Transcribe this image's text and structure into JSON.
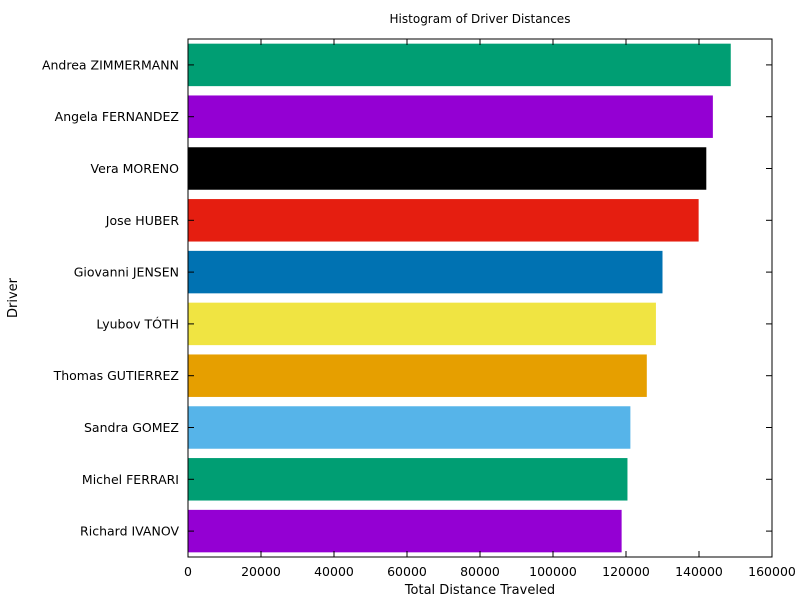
{
  "chart_data": {
    "type": "bar",
    "orientation": "horizontal",
    "title": "Histogram of Driver Distances",
    "xlabel": "Total Distance Traveled",
    "ylabel": "Driver",
    "xlim": [
      0,
      160000
    ],
    "xticks": [
      0,
      20000,
      40000,
      60000,
      80000,
      100000,
      120000,
      140000,
      160000
    ],
    "xtick_labels": [
      "0",
      "20000",
      "40000",
      "60000",
      "80000",
      "100000",
      "120000",
      "140000",
      "160000"
    ],
    "grid": false,
    "categories": [
      "Andrea ZIMMERMANN",
      "Angela FERNANDEZ",
      "Vera MORENO",
      "Jose HUBER",
      "Giovanni JENSEN",
      "Lyubov TÓTH",
      "Thomas GUTIERREZ",
      "Sandra GOMEZ",
      "Michel FERRARI",
      "Richard IVANOV"
    ],
    "values": [
      148700,
      143800,
      142000,
      139900,
      130000,
      128200,
      125700,
      121200,
      120400,
      118800
    ],
    "colors": [
      "#009e73",
      "#9400d3",
      "#000000",
      "#e51e10",
      "#0072b2",
      "#f0e442",
      "#e69f00",
      "#56b4e9",
      "#009e73",
      "#9400d3"
    ]
  }
}
